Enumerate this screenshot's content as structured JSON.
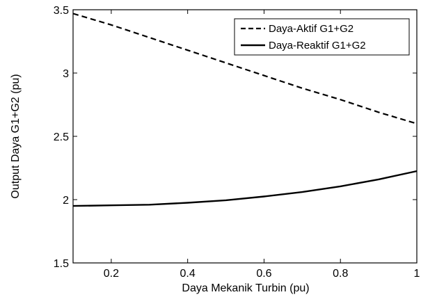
{
  "chart_data": {
    "type": "line",
    "title": "",
    "xlabel": "Daya Mekanik Turbin (pu)",
    "ylabel": "Output Daya G1+G2 (pu)",
    "xlim": [
      0.1,
      1.0
    ],
    "ylim": [
      1.5,
      3.5
    ],
    "xticks": [
      0.2,
      0.4,
      0.6,
      0.8,
      1
    ],
    "xtick_labels": [
      "0.2",
      "0.4",
      "0.6",
      "0.8",
      "1"
    ],
    "yticks": [
      1.5,
      2,
      2.5,
      3,
      3.5
    ],
    "ytick_labels": [
      "1.5",
      "2",
      "2.5",
      "3",
      "3.5"
    ],
    "grid": false,
    "legend_position": "top-right",
    "x": [
      0.1,
      0.2,
      0.3,
      0.4,
      0.5,
      0.6,
      0.7,
      0.8,
      0.9,
      1.0
    ],
    "series": [
      {
        "name": "Daya-Aktif G1+G2",
        "line_style": "dashed",
        "color": "#000000",
        "values": [
          3.47,
          3.38,
          3.28,
          3.18,
          3.08,
          2.98,
          2.88,
          2.79,
          2.69,
          2.6
        ]
      },
      {
        "name": "Daya-Reaktif G1+G2",
        "line_style": "solid",
        "color": "#000000",
        "values": [
          1.95,
          1.955,
          1.96,
          1.975,
          1.995,
          2.025,
          2.06,
          2.105,
          2.16,
          2.225
        ]
      }
    ]
  }
}
